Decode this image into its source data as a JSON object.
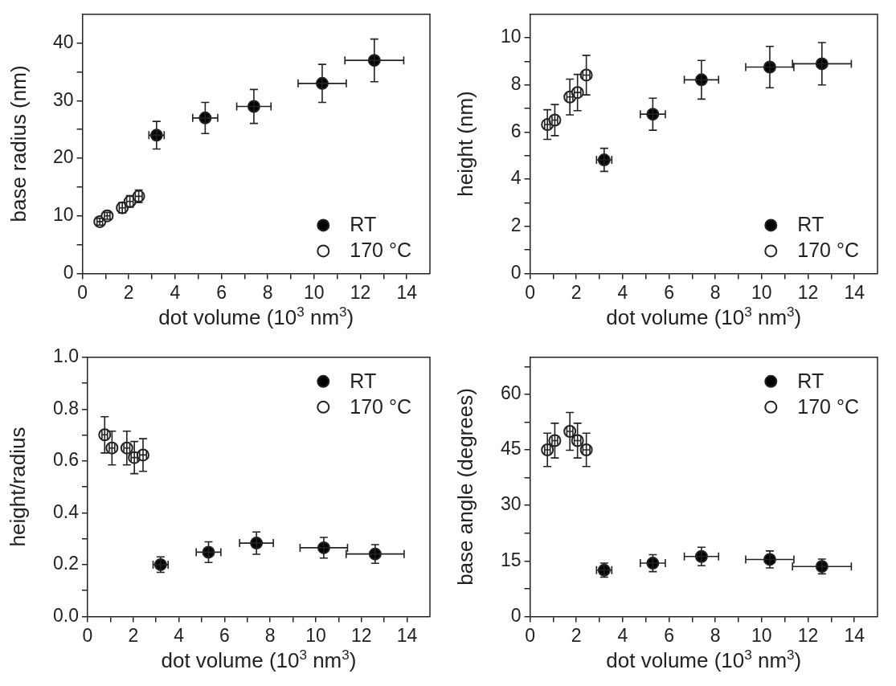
{
  "chart_data": [
    {
      "type": "scatter",
      "xlabel": "dot volume (10$^{3}$ nm$^{3}$)",
      "ylabel": "base radius (nm)",
      "xlim": [
        0,
        15
      ],
      "ylim": [
        0,
        45
      ],
      "xticks": [
        0,
        {
          "value": 1,
          "label": null
        },
        2,
        {
          "value": 3,
          "label": null
        },
        4,
        {
          "value": 5,
          "label": null
        },
        6,
        {
          "value": 7,
          "label": null
        },
        8,
        {
          "value": 9,
          "label": null
        },
        10,
        {
          "value": 11,
          "label": null
        },
        12,
        {
          "value": 13,
          "label": null
        },
        14
      ],
      "yticks": [
        0,
        {
          "value": 5,
          "label": null
        },
        10,
        {
          "value": 15,
          "label": null
        },
        20,
        {
          "value": 25,
          "label": null
        },
        30,
        {
          "value": 35,
          "label": null
        },
        40
      ],
      "legend": "bottom right",
      "marker": "circle",
      "series": [
        {
          "name": "RT",
          "color": "#000000",
          "x": [
            3.2,
            5.3,
            7.4,
            10.35,
            12.6
          ],
          "values": [
            24,
            27,
            29,
            33,
            37
          ],
          "errors": [
            2.4,
            2.7,
            2.95,
            3.3,
            3.7
          ],
          "xerrors": [
            0.33,
            0.54,
            0.74,
            1.04,
            1.27
          ]
        },
        {
          "name": "170 °C",
          "color": "#ffffff",
          "x": [
            0.75,
            1.07,
            1.72,
            2.05,
            2.43
          ],
          "values": [
            9,
            10,
            11.4,
            12.5,
            13.4
          ],
          "errors": [
            0.6,
            0.6,
            0.9,
            1,
            1.1
          ],
          "xerrors": [
            0.12,
            0.12,
            0.13,
            0.14,
            0.15
          ]
        }
      ]
    },
    {
      "type": "scatter",
      "xlabel": "dot volume (10$^{3}$ nm$^{3}$)",
      "ylabel": "height (nm)",
      "xlim": [
        0,
        15
      ],
      "ylim": [
        0,
        11
      ],
      "xticks": [
        0,
        {
          "value": 1,
          "label": null
        },
        2,
        {
          "value": 3,
          "label": null
        },
        4,
        {
          "value": 5,
          "label": null
        },
        6,
        {
          "value": 7,
          "label": null
        },
        8,
        {
          "value": 9,
          "label": null
        },
        10,
        {
          "value": 11,
          "label": null
        },
        12,
        {
          "value": 13,
          "label": null
        },
        14
      ],
      "yticks": [
        0,
        {
          "value": 1,
          "label": null
        },
        2,
        {
          "value": 3,
          "label": null
        },
        4,
        {
          "value": 5,
          "label": null
        },
        6,
        {
          "value": 7,
          "label": null
        },
        8,
        {
          "value": 9,
          "label": null
        },
        10
      ],
      "legend": "bottom right",
      "marker": "circle",
      "series": [
        {
          "name": "RT",
          "color": "#000000",
          "x": [
            3.2,
            5.3,
            7.4,
            10.35,
            12.6
          ],
          "values": [
            4.82,
            6.76,
            8.22,
            8.76,
            8.9
          ],
          "errors": [
            0.49,
            0.68,
            0.82,
            0.88,
            0.9
          ],
          "xerrors": [
            0.33,
            0.54,
            0.74,
            1.04,
            1.27
          ]
        },
        {
          "name": "170 °C",
          "color": "#ffffff",
          "x": [
            0.75,
            1.07,
            1.72,
            2.05,
            2.43
          ],
          "values": [
            6.32,
            6.51,
            7.49,
            7.68,
            8.42
          ],
          "errors": [
            0.63,
            0.66,
            0.76,
            0.77,
            0.84
          ],
          "xerrors": [
            0.12,
            0.12,
            0.13,
            0.14,
            0.15
          ]
        }
      ]
    },
    {
      "type": "scatter",
      "xlabel": "dot volume (10$^{3}$ nm$^{3}$)",
      "ylabel": "height/radius",
      "xlim": [
        0,
        15
      ],
      "ylim": [
        0,
        1
      ],
      "xticks": [
        0,
        {
          "value": 1,
          "label": null
        },
        2,
        {
          "value": 3,
          "label": null
        },
        4,
        {
          "value": 5,
          "label": null
        },
        6,
        {
          "value": 7,
          "label": null
        },
        8,
        {
          "value": 9,
          "label": null
        },
        10,
        {
          "value": 11,
          "label": null
        },
        12,
        {
          "value": 13,
          "label": null
        },
        14
      ],
      "yticks": [
        {
          "value": 0,
          "label": "0.0"
        },
        {
          "value": 0.1,
          "label": null
        },
        {
          "value": 0.2,
          "label": "0.2"
        },
        {
          "value": 0.3,
          "label": null
        },
        {
          "value": 0.4,
          "label": "0.4"
        },
        {
          "value": 0.5,
          "label": null
        },
        {
          "value": 0.6,
          "label": "0.6"
        },
        {
          "value": 0.7,
          "label": null
        },
        {
          "value": 0.8,
          "label": "0.8"
        },
        {
          "value": 0.9,
          "label": null
        },
        {
          "value": 1,
          "label": "1.0"
        }
      ],
      "legend": "top right",
      "marker": "circle",
      "series": [
        {
          "name": "RT",
          "color": "#000000",
          "x": [
            3.2,
            5.3,
            7.4,
            10.35,
            12.6
          ],
          "values": [
            0.2,
            0.248,
            0.283,
            0.265,
            0.241
          ],
          "errors": [
            0.03,
            0.04,
            0.043,
            0.04,
            0.036
          ],
          "xerrors": [
            0.33,
            0.54,
            0.74,
            1.04,
            1.27
          ]
        },
        {
          "name": "170 °C",
          "color": "#ffffff",
          "x": [
            0.75,
            1.07,
            1.72,
            2.05,
            2.43
          ],
          "values": [
            0.701,
            0.65,
            0.65,
            0.613,
            0.623
          ],
          "errors": [
            0.07,
            0.065,
            0.065,
            0.062,
            0.063
          ],
          "xerrors": [
            0.12,
            0.12,
            0.13,
            0.14,
            0.15
          ]
        }
      ]
    },
    {
      "type": "scatter",
      "xlabel": "dot volume (10$^{3}$ nm$^{3}$)",
      "ylabel": "base angle (degrees)",
      "xlim": [
        0,
        15
      ],
      "ylim": [
        0,
        70
      ],
      "xticks": [
        0,
        {
          "value": 1,
          "label": null
        },
        2,
        {
          "value": 3,
          "label": null
        },
        4,
        {
          "value": 5,
          "label": null
        },
        6,
        {
          "value": 7,
          "label": null
        },
        8,
        {
          "value": 9,
          "label": null
        },
        10,
        {
          "value": 11,
          "label": null
        },
        12,
        {
          "value": 13,
          "label": null
        },
        14
      ],
      "yticks": [
        0,
        {
          "value": 7.5,
          "label": null
        },
        15,
        {
          "value": 22.5,
          "label": null
        },
        30,
        {
          "value": 37.5,
          "label": null
        },
        45,
        {
          "value": 52.5,
          "label": null
        },
        60,
        {
          "value": 67.5,
          "label": null
        }
      ],
      "legend": "top right",
      "marker": "circle",
      "series": [
        {
          "name": "RT",
          "color": "#000000",
          "x": [
            3.2,
            5.3,
            7.4,
            10.35,
            12.6
          ],
          "values": [
            12.5,
            14.4,
            16.2,
            15.4,
            13.5
          ],
          "errors": [
            1.9,
            2.3,
            2.5,
            2.3,
            2
          ],
          "xerrors": [
            0.33,
            0.54,
            0.74,
            1.04,
            1.27
          ]
        },
        {
          "name": "170 °C",
          "color": "#ffffff",
          "x": [
            0.75,
            1.07,
            1.72,
            2.05,
            2.43
          ],
          "values": [
            45,
            47.5,
            50,
            47.5,
            45
          ],
          "errors": [
            4.5,
            4.7,
            5.1,
            4.7,
            4.5
          ],
          "xerrors": [
            0.12,
            0.12,
            0.13,
            0.14,
            0.15
          ]
        }
      ]
    }
  ]
}
